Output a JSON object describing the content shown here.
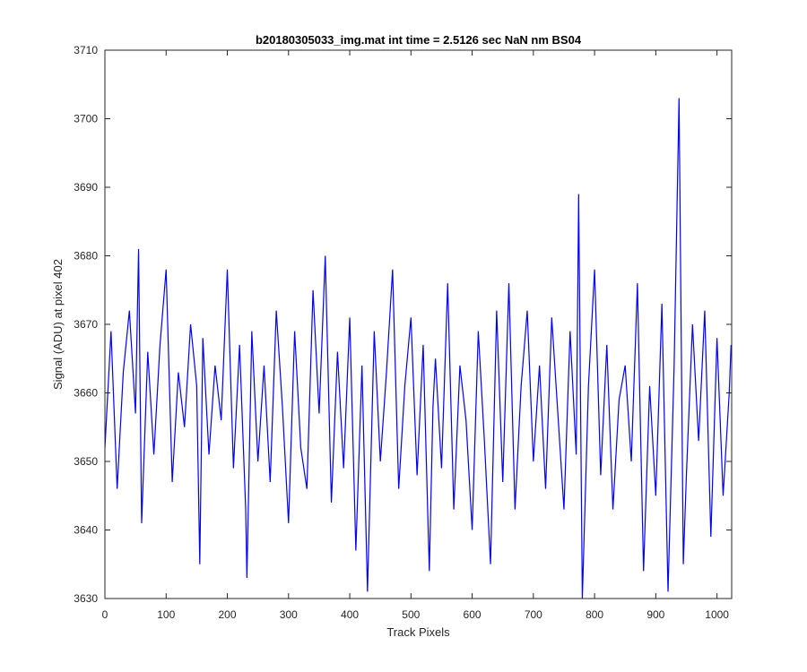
{
  "chart_data": {
    "type": "line",
    "title": "b20180305033_img.mat int time = 2.5126 sec  NaN nm BS04",
    "xlabel": "Track Pixels",
    "ylabel": "Signal (ADU) at pixel 402",
    "xlim": [
      0,
      1024
    ],
    "ylim": [
      3630,
      3710
    ],
    "xticks": [
      0,
      100,
      200,
      300,
      400,
      500,
      600,
      700,
      800,
      900,
      1000
    ],
    "yticks": [
      3630,
      3640,
      3650,
      3660,
      3670,
      3680,
      3690,
      3700,
      3710
    ],
    "grid": false,
    "legend": "none",
    "colors": {
      "series": "#0000ff",
      "axes": "#262626"
    },
    "series": [
      {
        "name": "",
        "x": [
          0,
          10,
          20,
          30,
          40,
          50,
          55,
          60,
          70,
          80,
          90,
          100,
          110,
          120,
          130,
          140,
          150,
          155,
          160,
          170,
          180,
          190,
          200,
          210,
          220,
          230,
          232,
          240,
          250,
          260,
          270,
          280,
          290,
          300,
          310,
          320,
          330,
          340,
          350,
          360,
          370,
          380,
          390,
          400,
          410,
          420,
          429,
          440,
          450,
          460,
          470,
          480,
          490,
          500,
          510,
          520,
          530,
          536,
          540,
          550,
          560,
          570,
          580,
          590,
          600,
          610,
          620,
          630,
          640,
          650,
          660,
          670,
          680,
          690,
          700,
          710,
          720,
          730,
          740,
          750,
          760,
          770,
          774,
          780,
          790,
          800,
          810,
          820,
          830,
          840,
          850,
          860,
          870,
          880,
          890,
          900,
          910,
          920,
          930,
          938,
          945,
          950,
          960,
          970,
          980,
          990,
          1000,
          1010,
          1020,
          1023
        ],
        "values": [
          3652,
          3669,
          3646,
          3663,
          3672,
          3657,
          3681,
          3641,
          3666,
          3651,
          3667,
          3678,
          3647,
          3663,
          3655,
          3670,
          3661,
          3635,
          3668,
          3651,
          3664,
          3656,
          3678,
          3649,
          3667,
          3643,
          3633,
          3669,
          3650,
          3664,
          3647,
          3672,
          3658,
          3641,
          3669,
          3652,
          3646,
          3675,
          3657,
          3680,
          3644,
          3666,
          3649,
          3671,
          3637,
          3664,
          3631,
          3669,
          3650,
          3663,
          3678,
          3646,
          3661,
          3671,
          3648,
          3667,
          3634,
          3658,
          3665,
          3649,
          3676,
          3643,
          3664,
          3656,
          3640,
          3669,
          3653,
          3635,
          3672,
          3647,
          3676,
          3643,
          3661,
          3672,
          3650,
          3664,
          3646,
          3671,
          3657,
          3643,
          3669,
          3651,
          3689,
          3630,
          3661,
          3678,
          3648,
          3667,
          3643,
          3659,
          3664,
          3650,
          3676,
          3634,
          3661,
          3645,
          3673,
          3631,
          3664,
          3703,
          3635,
          3648,
          3670,
          3653,
          3672,
          3639,
          3668,
          3645,
          3660,
          3667
        ]
      }
    ]
  }
}
